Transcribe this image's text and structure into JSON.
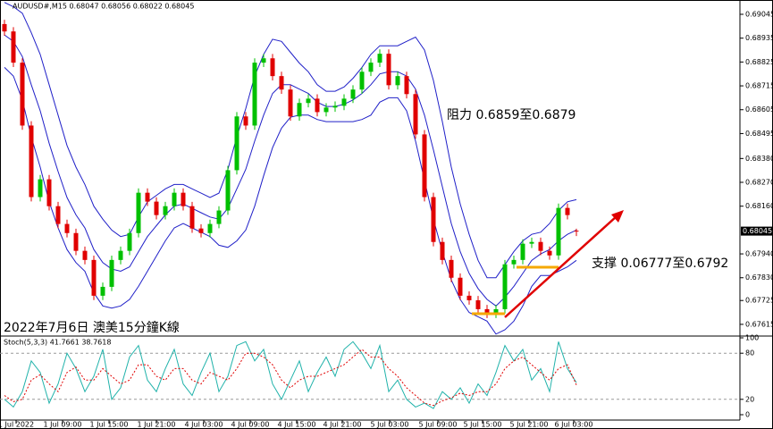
{
  "chart_data": [
    {
      "type": "candlestick",
      "title": "AUDUSD#,M15  0.68047 0.68056 0.68022 0.68045",
      "xlim": [
        -0.5,
        82.3
      ],
      "ylim": [
        0.67561,
        0.69111
      ],
      "yticks": [
        0.69045,
        0.68935,
        0.68825,
        0.68715,
        0.68605,
        0.68495,
        {
          "value": 0.6838,
          "label": "0.68380"
        },
        {
          "value": 0.6827,
          "label": "0.68270"
        },
        {
          "value": 0.6816,
          "label": "0.68160"
        },
        {
          "value": 0.6794,
          "label": "0.67940"
        },
        {
          "value": 0.6783,
          "label": "0.67830"
        },
        0.67725,
        0.67615
      ],
      "current_price": 0.68045,
      "up_color": "#00c000",
      "down_color": "#e00000",
      "open": [
        0.69,
        0.68966,
        0.68822,
        0.68532,
        0.68202,
        0.68284,
        0.6816,
        0.68078,
        0.68036,
        0.67954,
        0.67912,
        0.67747,
        0.67788,
        0.67912,
        0.67954,
        0.68036,
        0.68222,
        0.68181,
        0.68119,
        0.6816,
        0.68222,
        0.6816,
        0.68057,
        0.68036,
        0.68078,
        0.6814,
        0.68326,
        0.68574,
        0.68532,
        0.68822,
        0.68842,
        0.6876,
        0.68698,
        0.68574,
        0.68636,
        0.68656,
        0.68594,
        0.68615,
        0.68623,
        0.68656,
        0.68698,
        0.6878,
        0.68822,
        0.68863,
        0.68718,
        0.6876,
        0.68677,
        0.68491,
        0.68202,
        0.67995,
        0.67912,
        0.6783,
        0.67747,
        0.67726,
        0.67685,
        0.67664,
        0.67685,
        0.67892,
        0.67912,
        0.67987,
        0.67995,
        0.67954,
        0.67933,
        0.68152,
        0.68047
      ],
      "high": [
        0.6902,
        0.68986,
        0.68842,
        0.68552,
        0.68304,
        0.68304,
        0.6818,
        0.68098,
        0.68056,
        0.67974,
        0.67932,
        0.67808,
        0.67932,
        0.67974,
        0.68056,
        0.68242,
        0.68242,
        0.68201,
        0.6818,
        0.68242,
        0.68242,
        0.6818,
        0.68077,
        0.68098,
        0.6816,
        0.68346,
        0.68594,
        0.68594,
        0.68842,
        0.68862,
        0.68862,
        0.6878,
        0.68718,
        0.68656,
        0.68676,
        0.68676,
        0.68635,
        0.68643,
        0.68676,
        0.68718,
        0.688,
        0.68842,
        0.68883,
        0.68883,
        0.6878,
        0.6878,
        0.68697,
        0.68511,
        0.68222,
        0.68015,
        0.67932,
        0.6785,
        0.67767,
        0.67746,
        0.67705,
        0.67705,
        0.67912,
        0.67932,
        0.68007,
        0.68015,
        0.68015,
        0.67974,
        0.68172,
        0.68172,
        0.68056
      ],
      "low": [
        0.68946,
        0.68802,
        0.68512,
        0.68182,
        0.68182,
        0.6814,
        0.68058,
        0.68016,
        0.67934,
        0.67892,
        0.67727,
        0.67727,
        0.67768,
        0.67892,
        0.67934,
        0.68016,
        0.68161,
        0.68099,
        0.68099,
        0.6814,
        0.6814,
        0.68037,
        0.68016,
        0.68016,
        0.68058,
        0.6812,
        0.68306,
        0.68512,
        0.68512,
        0.68802,
        0.6874,
        0.68678,
        0.68554,
        0.68554,
        0.68616,
        0.68574,
        0.68574,
        0.68595,
        0.68603,
        0.68636,
        0.68678,
        0.6876,
        0.68802,
        0.68698,
        0.68698,
        0.68657,
        0.68471,
        0.68182,
        0.67975,
        0.67892,
        0.6781,
        0.67727,
        0.67706,
        0.67665,
        0.67644,
        0.67644,
        0.67665,
        0.67872,
        0.67892,
        0.67967,
        0.67934,
        0.67913,
        0.67913,
        0.68099,
        0.68022
      ],
      "close": [
        0.68966,
        0.68822,
        0.68532,
        0.68202,
        0.68284,
        0.6816,
        0.68078,
        0.68036,
        0.67954,
        0.67912,
        0.67747,
        0.67788,
        0.67912,
        0.67954,
        0.68036,
        0.68222,
        0.68181,
        0.68119,
        0.6816,
        0.68222,
        0.6816,
        0.68057,
        0.68036,
        0.68078,
        0.6814,
        0.68326,
        0.68574,
        0.68532,
        0.68822,
        0.68842,
        0.6876,
        0.68698,
        0.68574,
        0.68636,
        0.68656,
        0.68594,
        0.68615,
        0.68623,
        0.68656,
        0.68698,
        0.6878,
        0.68822,
        0.68863,
        0.68718,
        0.6876,
        0.68677,
        0.68491,
        0.68202,
        0.67995,
        0.67912,
        0.6783,
        0.67747,
        0.67726,
        0.67685,
        0.67664,
        0.67685,
        0.67892,
        0.67912,
        0.67987,
        0.67995,
        0.67954,
        0.67933,
        0.68152,
        0.68119,
        0.68045
      ],
      "bands": {
        "color": "#2020c8",
        "upper": [
          0.691,
          0.6908,
          0.6905,
          0.6896,
          0.6886,
          0.6872,
          0.6858,
          0.6844,
          0.6834,
          0.6826,
          0.6816,
          0.681,
          0.6805,
          0.6802,
          0.6803,
          0.6811,
          0.6818,
          0.6821,
          0.6824,
          0.6826,
          0.6826,
          0.6824,
          0.6822,
          0.682,
          0.6822,
          0.6833,
          0.6848,
          0.6861,
          0.6876,
          0.6886,
          0.6893,
          0.6892,
          0.6887,
          0.6882,
          0.6878,
          0.6872,
          0.6869,
          0.6869,
          0.6871,
          0.6875,
          0.688,
          0.6886,
          0.689,
          0.689,
          0.689,
          0.6892,
          0.6894,
          0.6888,
          0.6874,
          0.6855,
          0.6834,
          0.6817,
          0.6803,
          0.6791,
          0.6783,
          0.6783,
          0.6789,
          0.6795,
          0.68,
          0.6803,
          0.6804,
          0.6808,
          0.6814,
          0.6818,
          0.6819
        ],
        "middle": [
          0.6895,
          0.6892,
          0.6885,
          0.6872,
          0.686,
          0.6845,
          0.6832,
          0.682,
          0.6812,
          0.6806,
          0.6796,
          0.679,
          0.6787,
          0.6786,
          0.6788,
          0.6795,
          0.6802,
          0.6807,
          0.6812,
          0.6816,
          0.6817,
          0.6815,
          0.6813,
          0.6811,
          0.681,
          0.6815,
          0.6824,
          0.6833,
          0.6846,
          0.6858,
          0.6868,
          0.6872,
          0.6872,
          0.687,
          0.6868,
          0.6864,
          0.6862,
          0.6862,
          0.6863,
          0.6865,
          0.6868,
          0.6872,
          0.6877,
          0.6878,
          0.6878,
          0.6876,
          0.687,
          0.6858,
          0.6842,
          0.6825,
          0.6808,
          0.6795,
          0.6785,
          0.6778,
          0.6773,
          0.677,
          0.6774,
          0.6779,
          0.6785,
          0.6791,
          0.6794,
          0.6796,
          0.68,
          0.6803,
          0.6805
        ],
        "lower": [
          0.688,
          0.6876,
          0.6865,
          0.6848,
          0.6834,
          0.6818,
          0.6806,
          0.6796,
          0.679,
          0.6786,
          0.6776,
          0.677,
          0.6769,
          0.677,
          0.6773,
          0.6779,
          0.6786,
          0.6793,
          0.68,
          0.6806,
          0.6808,
          0.6806,
          0.6804,
          0.6802,
          0.6798,
          0.6797,
          0.68,
          0.6805,
          0.6816,
          0.683,
          0.6843,
          0.6852,
          0.6857,
          0.6858,
          0.6858,
          0.6856,
          0.6855,
          0.6855,
          0.6855,
          0.6855,
          0.6856,
          0.6858,
          0.6864,
          0.6866,
          0.6866,
          0.686,
          0.6846,
          0.6828,
          0.681,
          0.6795,
          0.6782,
          0.6773,
          0.6767,
          0.6765,
          0.6763,
          0.6757,
          0.6759,
          0.6763,
          0.677,
          0.6779,
          0.6784,
          0.6784,
          0.6786,
          0.6788,
          0.6791
        ]
      },
      "annotations": [
        "阻力 0.6859至0.6879",
        "支撑 0.06777至0.6792",
        "2022年7月6日 澳美15分鐘K線"
      ]
    },
    {
      "type": "line",
      "title": "Stoch(5,3,3) 41.7661 38.7618",
      "xlim": [
        -0.5,
        82.3
      ],
      "ylim": [
        0,
        100
      ],
      "yticks": [
        100,
        80,
        20,
        0
      ],
      "xticks": [
        {
          "value": 1.3,
          "label": "1 Jul 2022"
        },
        {
          "value": 6.5,
          "label": "1 Jul 09:00"
        },
        {
          "value": 11.7,
          "label": "1 Jul 15:00"
        },
        {
          "value": 17,
          "label": "1 Jul 21:00"
        },
        {
          "value": 22.3,
          "label": "4 Jul 03:00"
        },
        {
          "value": 27.5,
          "label": "4 Jul 09:00"
        },
        {
          "value": 32.7,
          "label": "4 Jul 15:00"
        },
        {
          "value": 37.8,
          "label": "4 Jul 21:00"
        },
        {
          "value": 43.1,
          "label": "5 Jul 03:00"
        },
        {
          "value": 48.5,
          "label": "5 Jul 09:00"
        },
        {
          "value": 53.5,
          "label": "5 Jul 15:00"
        },
        {
          "value": 58.7,
          "label": "5 Jul 21:00"
        },
        {
          "value": 63.7,
          "label": "6 Jul 03:00"
        }
      ],
      "series": [
        {
          "color": "#20b2aa",
          "values": [
            20,
            10,
            30,
            70,
            55,
            15,
            40,
            80,
            60,
            30,
            50,
            85,
            20,
            35,
            75,
            90,
            45,
            30,
            60,
            85,
            40,
            25,
            55,
            80,
            30,
            50,
            90,
            95,
            70,
            85,
            40,
            20,
            45,
            70,
            30,
            55,
            75,
            50,
            85,
            95,
            80,
            60,
            90,
            30,
            45,
            20,
            10,
            15,
            8,
            30,
            20,
            35,
            15,
            40,
            25,
            55,
            90,
            70,
            85,
            45,
            60,
            30,
            95,
            60,
            41.7661
          ]
        },
        {
          "color": "#e00000",
          "values": [
            25,
            17,
            20,
            45,
            52,
            40,
            30,
            55,
            62,
            45,
            45,
            60,
            50,
            40,
            45,
            65,
            65,
            50,
            45,
            60,
            60,
            45,
            40,
            55,
            50,
            45,
            60,
            80,
            80,
            75,
            65,
            45,
            35,
            45,
            50,
            50,
            55,
            60,
            65,
            75,
            85,
            75,
            75,
            60,
            50,
            35,
            25,
            15,
            12,
            18,
            22,
            28,
            25,
            30,
            30,
            40,
            60,
            70,
            75,
            65,
            55,
            45,
            60,
            65,
            38.7618
          ]
        }
      ]
    }
  ]
}
